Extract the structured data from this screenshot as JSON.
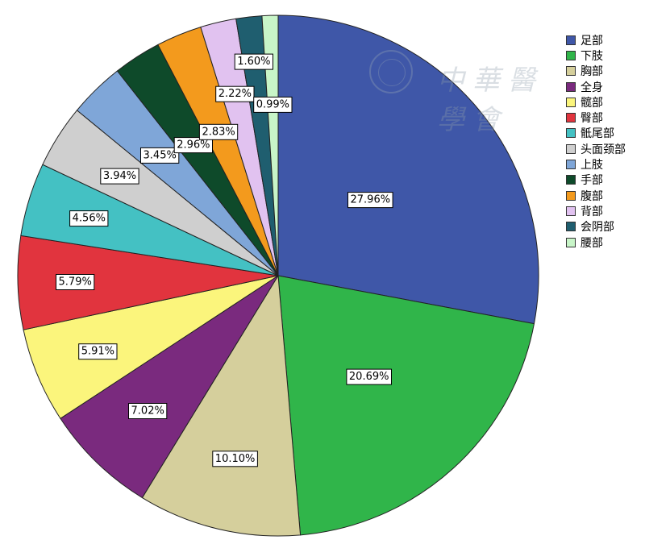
{
  "chart_data": {
    "type": "pie",
    "start_angle_deg": 0,
    "direction": "clockwise",
    "slices": [
      {
        "label": "足部",
        "value": 27.96,
        "display": "27.96%",
        "color": "#3f57a8"
      },
      {
        "label": "下肢",
        "value": 20.69,
        "display": "20.69%",
        "color": "#30b54a"
      },
      {
        "label": "胸部",
        "value": 10.1,
        "display": "10.10%",
        "color": "#d5cf9c"
      },
      {
        "label": "全身",
        "value": 7.02,
        "display": "7.02%",
        "color": "#7a2a7e"
      },
      {
        "label": "髋部",
        "value": 5.91,
        "display": "5.91%",
        "color": "#fbf57c"
      },
      {
        "label": "臀部",
        "value": 5.79,
        "display": "5.79%",
        "color": "#e1343e"
      },
      {
        "label": "骶尾部",
        "value": 4.56,
        "display": "4.56%",
        "color": "#44c1c3"
      },
      {
        "label": "头面颈部",
        "value": 3.94,
        "display": "3.94%",
        "color": "#cfcfcf"
      },
      {
        "label": "上肢",
        "value": 3.45,
        "display": "3.45%",
        "color": "#7fa6d8"
      },
      {
        "label": "手部",
        "value": 2.96,
        "display": "2.96%",
        "color": "#0e4a2a"
      },
      {
        "label": "腹部",
        "value": 2.83,
        "display": "2.83%",
        "color": "#f39a1d"
      },
      {
        "label": "背部",
        "value": 2.22,
        "display": "2.22%",
        "color": "#e1c2f0"
      },
      {
        "label": "会阴部",
        "value": 1.6,
        "display": "1.60%",
        "color": "#1f5e6f"
      },
      {
        "label": "腰部",
        "value": 0.99,
        "display": "0.99%",
        "color": "#c8f5c8"
      }
    ],
    "legend_position": "right"
  },
  "watermark": {
    "text": "中華醫學會",
    "seal_icon": "society-seal-icon"
  }
}
